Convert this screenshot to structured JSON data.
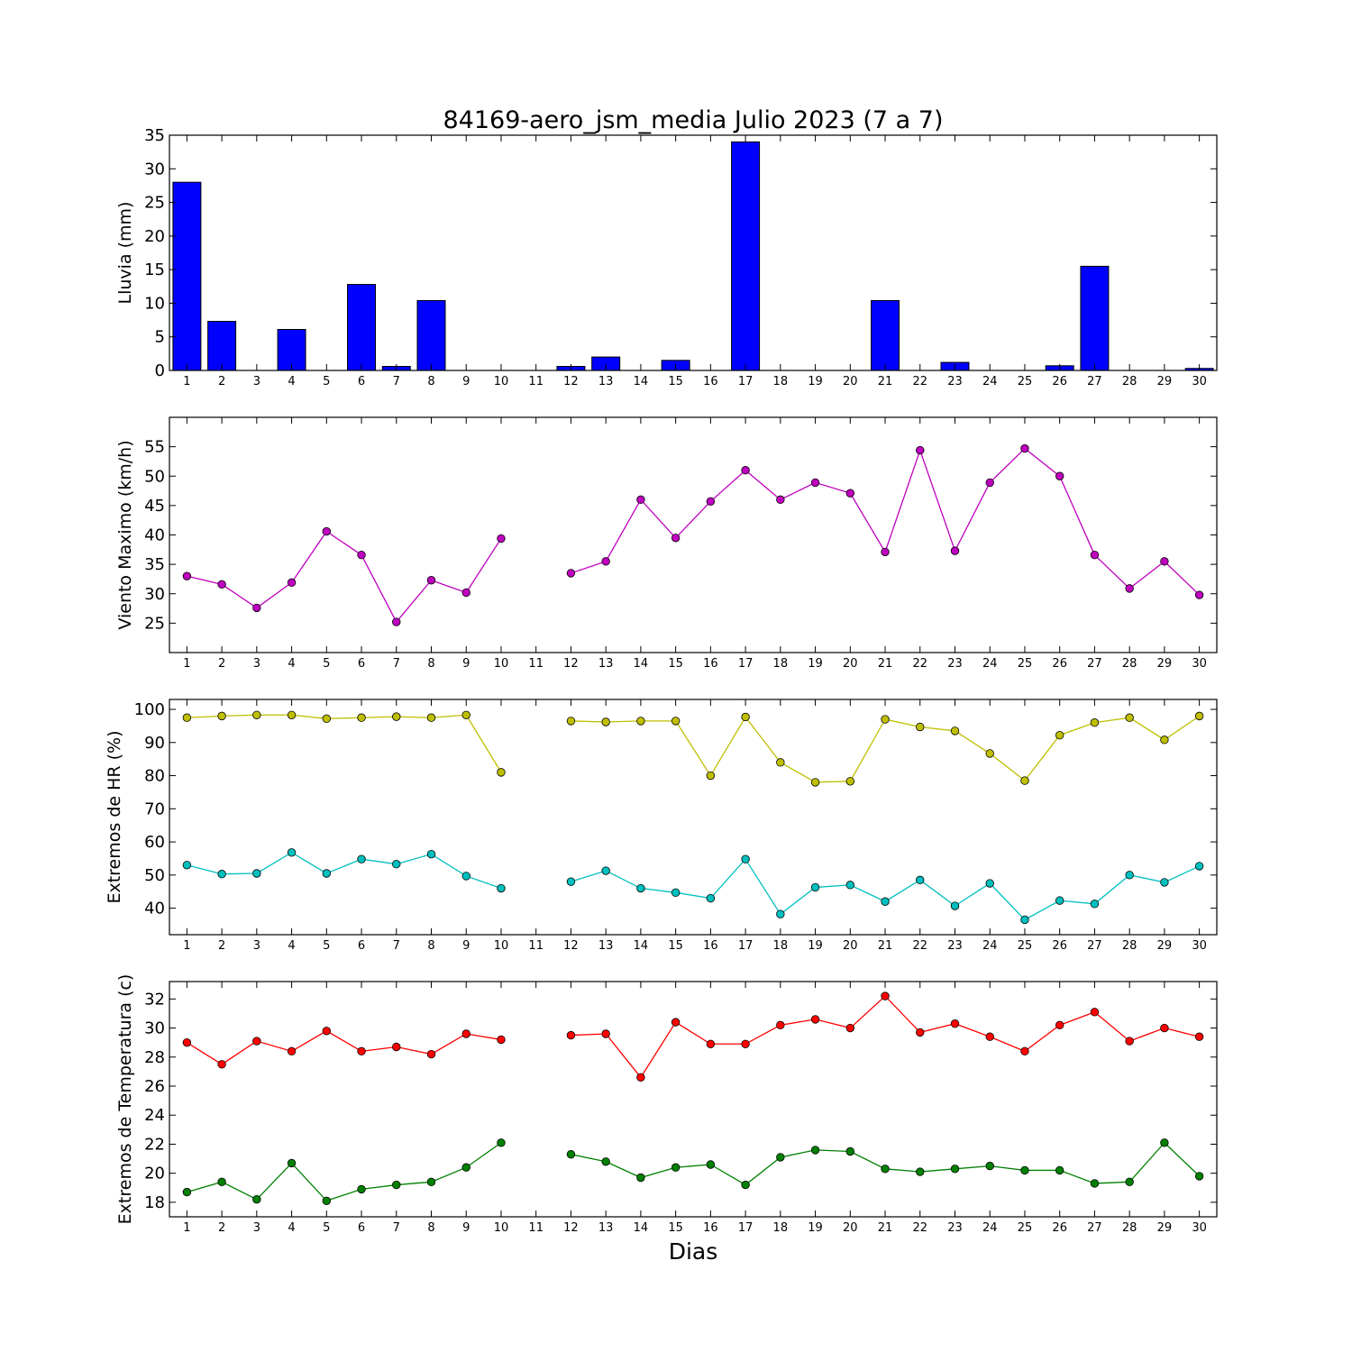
{
  "figure": {
    "title": "84169-aero_jsm_media Julio 2023  (7 a 7)",
    "xlabel": "Dias"
  },
  "chart_data": [
    {
      "type": "bar",
      "ylabel": "Lluvia (mm)",
      "x": [
        1,
        2,
        3,
        4,
        5,
        6,
        7,
        8,
        9,
        10,
        11,
        12,
        13,
        14,
        15,
        16,
        17,
        18,
        19,
        20,
        21,
        22,
        23,
        24,
        25,
        26,
        27,
        28,
        29,
        30
      ],
      "ylim": [
        0,
        35
      ],
      "yticks": [
        0,
        5,
        10,
        15,
        20,
        25,
        30,
        35
      ],
      "grid": false,
      "series": [
        {
          "color": "#0000ff",
          "values": [
            28.0,
            7.3,
            0.0,
            6.1,
            0.0,
            12.8,
            0.6,
            10.4,
            0.0,
            0.0,
            0.0,
            0.6,
            2.0,
            0.0,
            1.5,
            0.0,
            34.0,
            0.0,
            0.0,
            0.0,
            10.4,
            0.0,
            1.2,
            0.0,
            0.0,
            0.7,
            15.5,
            0.0,
            0.0,
            0.3
          ]
        }
      ]
    },
    {
      "type": "line",
      "ylabel": "Viento Maximo (km/h)",
      "x": [
        1,
        2,
        3,
        4,
        5,
        6,
        7,
        8,
        9,
        10,
        11,
        12,
        13,
        14,
        15,
        16,
        17,
        18,
        19,
        20,
        21,
        22,
        23,
        24,
        25,
        26,
        27,
        28,
        29,
        30
      ],
      "ylim": [
        20,
        60
      ],
      "yticks": [
        25,
        30,
        35,
        40,
        45,
        50,
        55
      ],
      "grid": false,
      "series": [
        {
          "color": "#bf00bf",
          "values": [
            33.0,
            31.6,
            27.6,
            31.9,
            40.6,
            36.6,
            25.2,
            32.3,
            30.2,
            39.4,
            null,
            33.5,
            35.5,
            46.0,
            39.5,
            45.7,
            51.0,
            46.0,
            48.9,
            47.1,
            37.1,
            54.4,
            37.3,
            48.9,
            54.7,
            50.0,
            36.6,
            30.9,
            35.5,
            29.8
          ]
        }
      ]
    },
    {
      "type": "line",
      "ylabel": "Extremos de HR (%)",
      "x": [
        1,
        2,
        3,
        4,
        5,
        6,
        7,
        8,
        9,
        10,
        11,
        12,
        13,
        14,
        15,
        16,
        17,
        18,
        19,
        20,
        21,
        22,
        23,
        24,
        25,
        26,
        27,
        28,
        29,
        30
      ],
      "ylim": [
        32,
        103
      ],
      "yticks": [
        40,
        50,
        60,
        70,
        80,
        90,
        100
      ],
      "grid": false,
      "series": [
        {
          "color": "#bfbf00",
          "values": [
            97.5,
            98.0,
            98.3,
            98.3,
            97.2,
            97.5,
            97.8,
            97.5,
            98.3,
            81.0,
            null,
            96.5,
            96.2,
            96.5,
            96.5,
            80.0,
            97.7,
            84.0,
            78.0,
            78.3,
            97.0,
            94.7,
            93.5,
            86.7,
            78.5,
            92.2,
            96.0,
            97.5,
            90.8,
            98.0
          ]
        },
        {
          "color": "#00bfbf",
          "values": [
            53.0,
            50.3,
            50.5,
            56.8,
            50.5,
            54.8,
            53.3,
            56.3,
            49.7,
            46.0,
            null,
            48.0,
            51.3,
            46.0,
            44.7,
            43.0,
            54.8,
            38.2,
            46.3,
            47.0,
            42.0,
            48.5,
            40.7,
            47.5,
            36.5,
            42.3,
            41.3,
            50.0,
            47.8,
            52.7
          ]
        }
      ]
    },
    {
      "type": "line",
      "ylabel": "Extremos de Temperatura (c)",
      "x": [
        1,
        2,
        3,
        4,
        5,
        6,
        7,
        8,
        9,
        10,
        11,
        12,
        13,
        14,
        15,
        16,
        17,
        18,
        19,
        20,
        21,
        22,
        23,
        24,
        25,
        26,
        27,
        28,
        29,
        30
      ],
      "ylim": [
        17,
        33.2
      ],
      "yticks": [
        18,
        20,
        22,
        24,
        26,
        28,
        30,
        32
      ],
      "grid": false,
      "series": [
        {
          "color": "#ff0000",
          "values": [
            29.0,
            27.5,
            29.1,
            28.4,
            29.8,
            28.4,
            28.7,
            28.2,
            29.6,
            29.2,
            null,
            29.5,
            29.6,
            26.6,
            30.4,
            28.9,
            28.9,
            30.2,
            30.6,
            30.0,
            32.2,
            29.7,
            30.3,
            29.4,
            28.4,
            30.2,
            31.1,
            29.1,
            30.0,
            29.4
          ]
        },
        {
          "color": "#008000",
          "values": [
            18.7,
            19.4,
            18.2,
            20.7,
            18.1,
            18.9,
            19.2,
            19.4,
            20.4,
            22.1,
            null,
            21.3,
            20.8,
            19.7,
            20.4,
            20.6,
            19.2,
            21.1,
            21.6,
            21.5,
            20.3,
            20.1,
            20.3,
            20.5,
            20.2,
            20.2,
            19.3,
            19.4,
            22.1,
            19.8
          ]
        }
      ]
    }
  ]
}
